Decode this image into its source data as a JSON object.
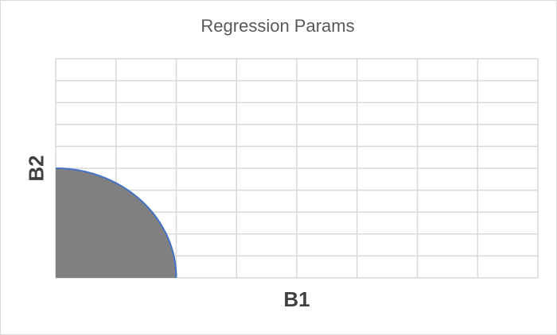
{
  "chart_data": {
    "type": "area",
    "title": "Regression Params",
    "xlabel": "B1",
    "ylabel": "B2",
    "xlim": [
      0,
      8
    ],
    "ylim": [
      0,
      10
    ],
    "x_gridlines": 8,
    "y_gridlines": 10,
    "grid": true,
    "legend": "none",
    "tick_labels_shown": false,
    "series": [
      {
        "shape": "quarter-circle",
        "center": [
          0,
          0
        ],
        "x_radius": 2,
        "y_radius": 5,
        "fill_color": "#808080",
        "edge_color": "#4472c4"
      }
    ],
    "colors": {
      "grid": "#d9d9d9",
      "title": "#595959",
      "axis_label": "#404040"
    }
  }
}
